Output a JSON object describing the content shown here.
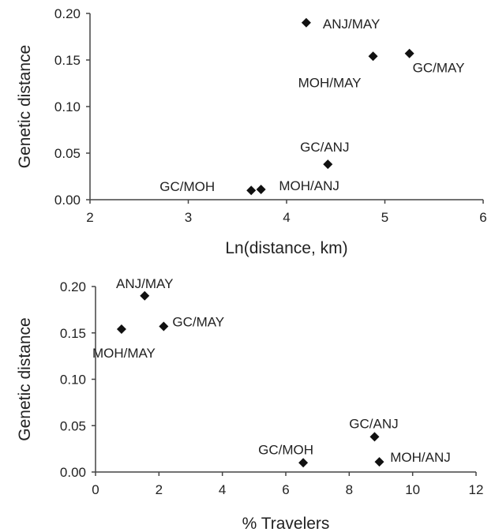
{
  "chart_data": [
    {
      "type": "scatter",
      "title": "",
      "xlabel": "Ln(distance, km)",
      "ylabel": "Genetic distance",
      "xlim": [
        2,
        6
      ],
      "ylim": [
        0,
        0.2
      ],
      "x_ticks": [
        "2",
        "3",
        "4",
        "5",
        "6"
      ],
      "y_ticks": [
        "0.00",
        "0.05",
        "0.10",
        "0.15",
        "0.20"
      ],
      "grid": false,
      "marker": "diamond",
      "marker_color": "#111111",
      "points": [
        {
          "label": "ANJ/MAY",
          "x": 4.2,
          "y": 0.19
        },
        {
          "label": "GC/MAY",
          "x": 5.25,
          "y": 0.157
        },
        {
          "label": "MOH/MAY",
          "x": 4.88,
          "y": 0.154
        },
        {
          "label": "GC/ANJ",
          "x": 4.42,
          "y": 0.038
        },
        {
          "label": "GC/MOH",
          "x": 3.64,
          "y": 0.01
        },
        {
          "label": "MOH/ANJ",
          "x": 3.74,
          "y": 0.011
        }
      ]
    },
    {
      "type": "scatter",
      "title": "",
      "xlabel": "% Travelers",
      "ylabel": "Genetic distance",
      "xlim": [
        0,
        12
      ],
      "ylim": [
        0,
        0.2
      ],
      "x_ticks": [
        "0",
        "2",
        "4",
        "6",
        "8",
        "10",
        "12"
      ],
      "y_ticks": [
        "0.00",
        "0.05",
        "0.10",
        "0.15",
        "0.20"
      ],
      "grid": false,
      "marker": "diamond",
      "marker_color": "#111111",
      "points": [
        {
          "label": "ANJ/MAY",
          "x": 1.55,
          "y": 0.19
        },
        {
          "label": "GC/MAY",
          "x": 2.15,
          "y": 0.157
        },
        {
          "label": "MOH/MAY",
          "x": 0.82,
          "y": 0.154
        },
        {
          "label": "GC/ANJ",
          "x": 8.8,
          "y": 0.038
        },
        {
          "label": "GC/MOH",
          "x": 6.55,
          "y": 0.01
        },
        {
          "label": "MOH/ANJ",
          "x": 8.95,
          "y": 0.011
        }
      ]
    }
  ]
}
